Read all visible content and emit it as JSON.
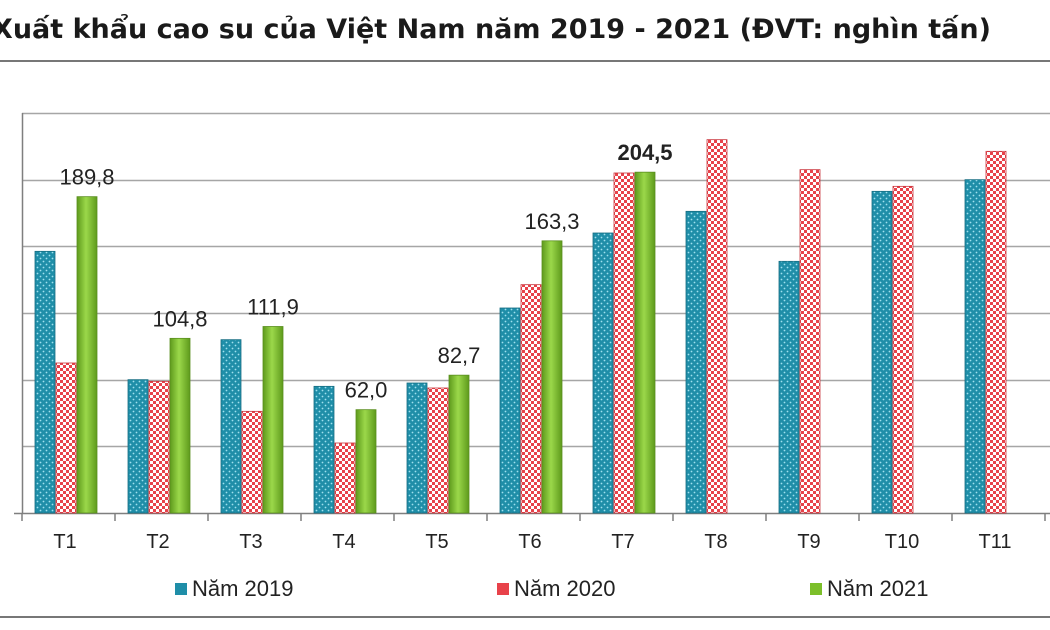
{
  "title": "Xuất khẩu cao su của Việt Nam năm 2019 - 2021 (ĐVT: nghìn tấn)",
  "colors": {
    "s2019": "#1f8ea8",
    "s2020": "#e8424a",
    "s2021": "#7cbf2a",
    "grid": "#a6a6a6",
    "axis": "#7f7f7f"
  },
  "chart_data": {
    "type": "bar",
    "title": "Xuất khẩu cao su của Việt Nam năm 2019 - 2021 (ĐVT: nghìn tấn)",
    "xlabel": "",
    "ylabel": "",
    "ylim": [
      0,
      240
    ],
    "grid": true,
    "legend_position": "bottom",
    "categories": [
      "T1",
      "T2",
      "T3",
      "T4",
      "T5",
      "T6",
      "T7",
      "T8",
      "T9",
      "T10",
      "T11"
    ],
    "series": [
      {
        "name": "Năm 2019",
        "values": [
          157,
          80,
          104,
          76,
          78,
          123,
          168,
          181,
          151,
          193,
          200
        ]
      },
      {
        "name": "Năm 2020",
        "values": [
          90,
          79,
          61,
          42,
          75,
          137,
          204,
          224,
          206,
          196,
          217
        ]
      },
      {
        "name": "Năm 2021",
        "values": [
          189.8,
          104.8,
          111.9,
          62.0,
          82.7,
          163.3,
          204.5,
          null,
          null,
          null,
          null
        ]
      }
    ],
    "data_labels": [
      {
        "category": "T1",
        "series": "Năm 2021",
        "text": "189,8"
      },
      {
        "category": "T2",
        "series": "Năm 2021",
        "text": "104,8"
      },
      {
        "category": "T3",
        "series": "Năm 2021",
        "text": "111,9"
      },
      {
        "category": "T4",
        "series": "Năm 2021",
        "text": "62,0"
      },
      {
        "category": "T5",
        "series": "Năm 2021",
        "text": "82,7"
      },
      {
        "category": "T6",
        "series": "Năm 2021",
        "text": "163,3"
      },
      {
        "category": "T7",
        "series": "Năm 2021",
        "text": "204,5",
        "bold": true
      }
    ]
  }
}
